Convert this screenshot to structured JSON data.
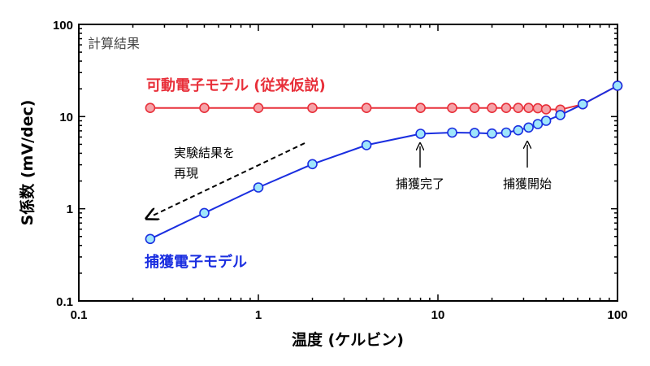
{
  "chart_data": {
    "type": "line",
    "xscale": "log",
    "yscale": "log",
    "xlim": [
      0.1,
      100
    ],
    "ylim": [
      0.1,
      100
    ],
    "xlabel": "温度 (ケルビン)",
    "ylabel": "S係数 (mV/dec)",
    "xticks": [
      "0.1",
      "1",
      "10",
      "100"
    ],
    "yticks": [
      "0.1",
      "1",
      "10",
      "100"
    ],
    "grid": false,
    "calc_label": "計算結果",
    "series": [
      {
        "name": "可動電子モデル (従来仮説)",
        "color": "#e8303a",
        "marker_fill": "#f5a3a8",
        "x": [
          0.25,
          0.5,
          1,
          2,
          4,
          8,
          12,
          16,
          20,
          24,
          28,
          32,
          36,
          40,
          48,
          64,
          100
        ],
        "y": [
          12.4,
          12.4,
          12.4,
          12.4,
          12.4,
          12.4,
          12.4,
          12.4,
          12.4,
          12.4,
          12.4,
          12.4,
          12.3,
          12.0,
          11.9,
          13.6,
          21.6
        ]
      },
      {
        "name": "捕獲電子モデル",
        "color": "#1a2ee0",
        "marker_fill": "#9fe6fb",
        "x": [
          0.25,
          0.5,
          1,
          2,
          4,
          8,
          12,
          16,
          20,
          24,
          28,
          32,
          36,
          40,
          48,
          64,
          100
        ],
        "y": [
          0.47,
          0.9,
          1.7,
          3.05,
          4.9,
          6.5,
          6.7,
          6.65,
          6.55,
          6.7,
          7.1,
          7.6,
          8.3,
          9.0,
          10.4,
          13.6,
          21.6
        ]
      }
    ],
    "annotations": [
      {
        "id": "capture-complete",
        "text": "捕獲完了",
        "x": 8,
        "y": 6.5
      },
      {
        "id": "capture-start",
        "text": "捕獲開始",
        "x": 30,
        "y": 7.1
      }
    ],
    "trend_note": {
      "line1": "実験結果を",
      "line2": "再現"
    }
  }
}
